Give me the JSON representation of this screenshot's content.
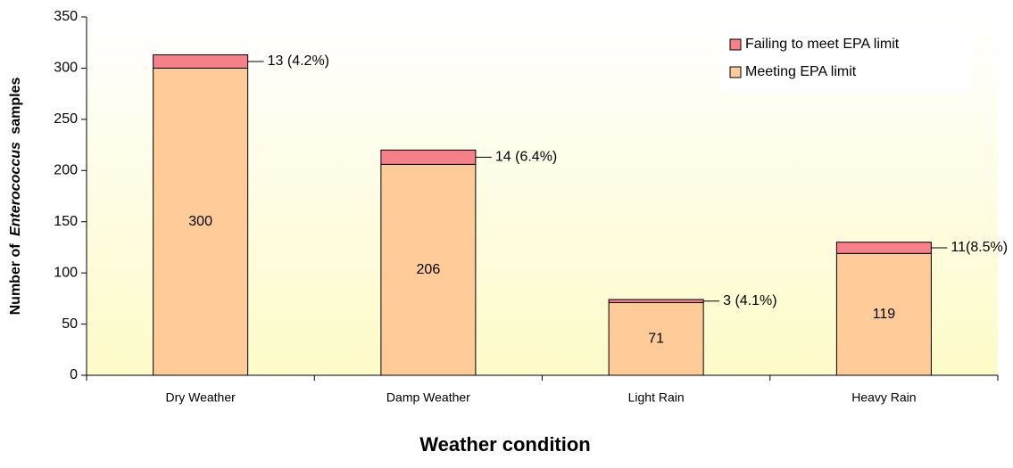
{
  "chart_data": {
    "type": "stacked_bar",
    "ylabel": [
      "Number of",
      "Enterococcus",
      "samples"
    ],
    "xlabel": "Weather condition",
    "categories": [
      "Dry Weather",
      "Damp Weather",
      "Light Rain",
      "Heavy Rain"
    ],
    "series": [
      {
        "name": "Meeting EPA limit",
        "color": "#ffcc99",
        "values": [
          300,
          206,
          71,
          119
        ]
      },
      {
        "name": "Failing to meet EPA limit",
        "color": "#f4808a",
        "values": [
          13,
          14,
          3,
          11
        ],
        "value_labels": [
          "13 (4.2%)",
          "14 (6.4%)",
          "3 (4.1%)",
          "11(8.5%)"
        ]
      }
    ],
    "ylim": [
      0,
      350
    ],
    "yticks": [
      0,
      50,
      100,
      150,
      200,
      250,
      300,
      350
    ],
    "legend": "upper right"
  }
}
